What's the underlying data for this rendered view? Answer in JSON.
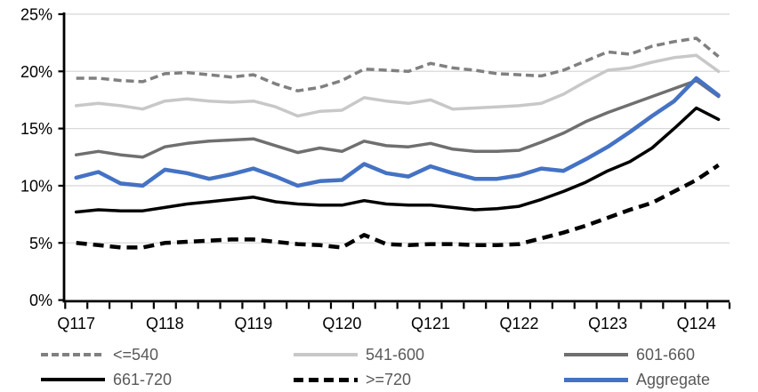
{
  "chart_data": {
    "type": "line",
    "title": "",
    "xlabel": "",
    "ylabel": "",
    "ylim": [
      0,
      25
    ],
    "grid": true,
    "legend_position": "bottom",
    "y_tick_labels": [
      "0%",
      "5%",
      "10%",
      "15%",
      "20%",
      "25%"
    ],
    "x_tick_labels": [
      "Q117",
      "Q118",
      "Q119",
      "Q120",
      "Q121",
      "Q122",
      "Q123",
      "Q124"
    ],
    "x_label_indices": [
      0,
      4,
      8,
      12,
      16,
      20,
      24,
      28
    ],
    "categories": [
      "2017Q1",
      "2017Q2",
      "2017Q3",
      "2017Q4",
      "2018Q1",
      "2018Q2",
      "2018Q3",
      "2018Q4",
      "2019Q1",
      "2019Q2",
      "2019Q3",
      "2019Q4",
      "2020Q1",
      "2020Q2",
      "2020Q3",
      "2020Q4",
      "2021Q1",
      "2021Q2",
      "2021Q3",
      "2021Q4",
      "2022Q1",
      "2022Q2",
      "2022Q3",
      "2022Q4",
      "2023Q1",
      "2023Q2",
      "2023Q3",
      "2023Q4",
      "2024Q1",
      "2024Q2"
    ],
    "series": [
      {
        "name": "<=540",
        "color": "#808080",
        "style": "dashed",
        "values": [
          19.4,
          19.4,
          19.2,
          19.1,
          19.8,
          19.9,
          19.7,
          19.5,
          19.7,
          18.9,
          18.3,
          18.6,
          19.2,
          20.2,
          20.1,
          20.0,
          20.7,
          20.3,
          20.1,
          19.8,
          19.7,
          19.6,
          20.1,
          20.9,
          21.7,
          21.5,
          22.2,
          22.6,
          22.9,
          21.3
        ]
      },
      {
        "name": "541-600",
        "color": "#C8C8C8",
        "style": "solid",
        "values": [
          17.0,
          17.2,
          17.0,
          16.7,
          17.4,
          17.6,
          17.4,
          17.3,
          17.4,
          16.9,
          16.1,
          16.5,
          16.6,
          17.7,
          17.4,
          17.2,
          17.5,
          16.7,
          16.8,
          16.9,
          17.0,
          17.2,
          18.0,
          19.1,
          20.1,
          20.3,
          20.8,
          21.2,
          21.4,
          20.0
        ]
      },
      {
        "name": "601-660",
        "color": "#6F6F6F",
        "style": "solid",
        "values": [
          12.7,
          13.0,
          12.7,
          12.5,
          13.4,
          13.7,
          13.9,
          14.0,
          14.1,
          13.5,
          12.9,
          13.3,
          13.0,
          13.9,
          13.5,
          13.4,
          13.7,
          13.2,
          13.0,
          13.0,
          13.1,
          13.8,
          14.6,
          15.6,
          16.4,
          17.1,
          17.8,
          18.5,
          19.2,
          17.8
        ]
      },
      {
        "name": "661-720",
        "color": "#000000",
        "style": "solid",
        "values": [
          7.7,
          7.9,
          7.8,
          7.8,
          8.1,
          8.4,
          8.6,
          8.8,
          9.0,
          8.6,
          8.4,
          8.3,
          8.3,
          8.7,
          8.4,
          8.3,
          8.3,
          8.1,
          7.9,
          8.0,
          8.2,
          8.8,
          9.5,
          10.3,
          11.3,
          12.1,
          13.3,
          15.0,
          16.8,
          15.8
        ]
      },
      {
        "name": ">=720",
        "color": "#000000",
        "style": "dashed",
        "values": [
          5.0,
          4.8,
          4.6,
          4.6,
          5.0,
          5.1,
          5.2,
          5.3,
          5.3,
          5.1,
          4.9,
          4.8,
          4.6,
          5.7,
          4.9,
          4.8,
          4.9,
          4.9,
          4.8,
          4.8,
          4.9,
          5.4,
          5.9,
          6.5,
          7.2,
          7.9,
          8.5,
          9.5,
          10.5,
          11.8
        ]
      },
      {
        "name": "Aggregate",
        "color": "#4472C4",
        "style": "solid",
        "values": [
          10.7,
          11.2,
          10.2,
          10.0,
          11.4,
          11.1,
          10.6,
          11.0,
          11.5,
          10.8,
          10.0,
          10.4,
          10.5,
          11.9,
          11.1,
          10.8,
          11.7,
          11.1,
          10.6,
          10.6,
          10.9,
          11.5,
          11.3,
          12.3,
          13.4,
          14.7,
          16.1,
          17.4,
          19.4,
          17.9
        ]
      }
    ],
    "colors": {
      "gridline": "#D9D9D9",
      "axis": "#000000",
      "legend_text": "#595959",
      "accent_blue": "#4472C4"
    },
    "legend_rows": [
      [
        0,
        1,
        2
      ],
      [
        3,
        4,
        5
      ]
    ]
  }
}
